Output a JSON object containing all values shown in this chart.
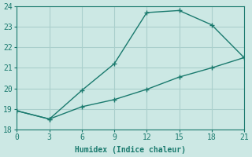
{
  "xlabel": "Humidex (Indice chaleur)",
  "line1_x": [
    0,
    3,
    6,
    9,
    12,
    15,
    18,
    21
  ],
  "line1_y": [
    18.9,
    18.5,
    19.9,
    21.2,
    23.7,
    23.8,
    23.1,
    21.5
  ],
  "line2_x": [
    0,
    3,
    6,
    9,
    12,
    15,
    18,
    21
  ],
  "line2_y": [
    18.9,
    18.5,
    19.1,
    19.45,
    19.95,
    20.55,
    21.0,
    21.5
  ],
  "line_color": "#1a7a6e",
  "bg_color": "#cce8e4",
  "grid_color": "#aacfcc",
  "xlim": [
    0,
    21
  ],
  "ylim": [
    18,
    24
  ],
  "xticks": [
    0,
    3,
    6,
    9,
    12,
    15,
    18,
    21
  ],
  "yticks": [
    18,
    19,
    20,
    21,
    22,
    23,
    24
  ],
  "marker": "+"
}
